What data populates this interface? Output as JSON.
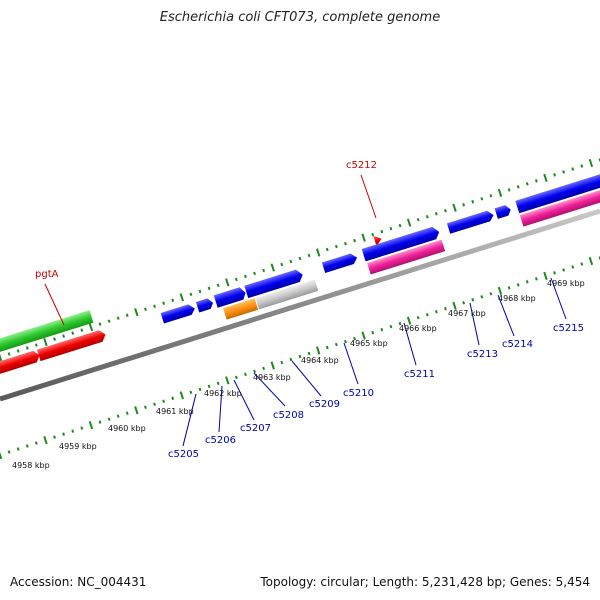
{
  "title": "Escherichia coli CFT073, complete genome",
  "footer": {
    "accession": "Accession: NC_004431",
    "topology": "Topology: circular; Length: 5,231,428 bp; Genes: 5,454"
  },
  "colors": {
    "tick": "#1e8a1e",
    "backbone": "#808080",
    "forward_label": "#cc0000",
    "reverse_label": "#0000aa"
  },
  "scale_labels": [
    "4958 kbp",
    "4959 kbp",
    "4960 kbp",
    "4961 kbp",
    "4962 kbp",
    "4963 kbp",
    "4964 kbp",
    "4965 kbp",
    "4966 kbp",
    "4967 kbp",
    "4968 kbp",
    "4969 kbp"
  ],
  "gene_labels": [
    {
      "name": "pgtA",
      "strand": "forward"
    },
    {
      "name": "c5212",
      "strand": "forward"
    },
    {
      "name": "c5205",
      "strand": "reverse"
    },
    {
      "name": "c5206",
      "strand": "reverse"
    },
    {
      "name": "c5207",
      "strand": "reverse"
    },
    {
      "name": "c5208",
      "strand": "reverse"
    },
    {
      "name": "c5209",
      "strand": "reverse"
    },
    {
      "name": "c5210",
      "strand": "reverse"
    },
    {
      "name": "c5211",
      "strand": "reverse"
    },
    {
      "name": "c5213",
      "strand": "reverse"
    },
    {
      "name": "c5214",
      "strand": "reverse"
    },
    {
      "name": "c5215",
      "strand": "reverse"
    }
  ]
}
